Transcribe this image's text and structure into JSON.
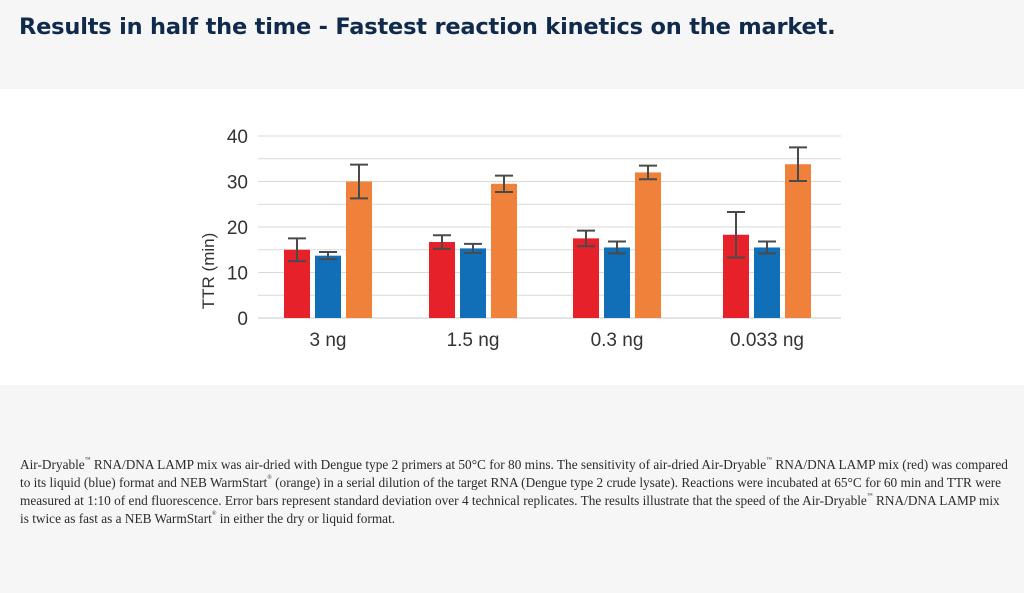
{
  "headline": "Results in half the time - Fastest reaction kinetics on the market.",
  "colors": {
    "red": "#e6212a",
    "blue": "#116fb8",
    "orange": "#f0813a",
    "error_bar": "#4a4a4a",
    "grid": "#d9d9d9"
  },
  "chart_data": {
    "type": "bar",
    "title": "",
    "ylabel": "TTR (min)",
    "xlabel": "",
    "ylim": [
      0,
      40
    ],
    "yticks": [
      0,
      10,
      20,
      30,
      40
    ],
    "grid": true,
    "legend": "none",
    "categories": [
      "3 ng",
      "1.5 ng",
      "0.3 ng",
      "0.033 ng"
    ],
    "series": [
      {
        "color": "#e6212a",
        "values": [
          15.0,
          16.7,
          17.5,
          18.3
        ],
        "errors": [
          2.5,
          1.5,
          1.7,
          5.0
        ]
      },
      {
        "color": "#116fb8",
        "values": [
          13.7,
          15.3,
          15.5,
          15.5
        ],
        "errors": [
          0.8,
          1.0,
          1.3,
          1.3
        ]
      },
      {
        "color": "#f0813a",
        "values": [
          30.0,
          29.5,
          32.0,
          33.8
        ],
        "errors": [
          3.7,
          1.8,
          1.5,
          3.7
        ]
      }
    ]
  },
  "caption": {
    "p1": "Air-Dryable",
    "p2": " RNA/DNA LAMP mix was air-dried with Dengue type 2 primers at 50°C for 80 mins. The sensitivity of air-dried Air-Dryable",
    "p3": " RNA/DNA LAMP mix (red) was compared to its liquid (blue) format and NEB WarmStart",
    "p4": " (orange) in a serial dilution of the target RNA (Dengue type 2 crude lysate). Reactions were incubated at 65°C for 60 min and TTR were measured at 1:10 of end fluorescence. Error bars represent standard deviation over 4 technical replicates. The results illustrate that the speed of the Air-Dryable",
    "p5": " RNA/DNA LAMP mix is twice as fast as a NEB WarmStart",
    "p6": " in either the dry or liquid format.",
    "tm": "™",
    "reg": "®"
  }
}
